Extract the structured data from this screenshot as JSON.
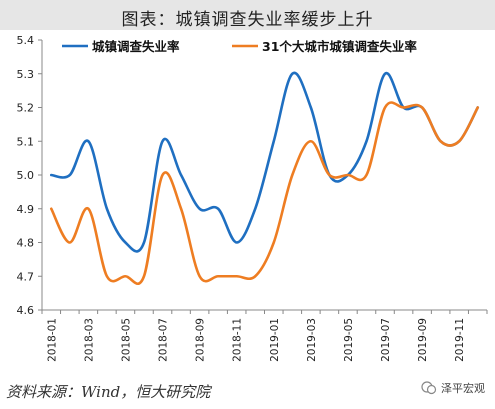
{
  "header": {
    "title": "图表：城镇调查失业率缓步上升"
  },
  "footer": {
    "source": "资料来源：Wind，恒大研究院",
    "watermark": "泽平宏观"
  },
  "colors": {
    "series1": "#1f6fc1",
    "series2": "#ee7d22",
    "axis": "#888888",
    "title_bg": "#e6e6e6"
  },
  "chart_data": {
    "type": "line",
    "x": [
      "2018-01",
      "2018-02",
      "2018-03",
      "2018-04",
      "2018-05",
      "2018-06",
      "2018-07",
      "2018-08",
      "2018-09",
      "2018-10",
      "2018-11",
      "2018-12",
      "2019-01",
      "2019-02",
      "2019-03",
      "2019-04",
      "2019-05",
      "2019-06",
      "2019-07",
      "2019-08",
      "2019-09",
      "2019-10",
      "2019-11",
      "2019-12"
    ],
    "tick_labels": [
      "2018-01",
      "2018-03",
      "2018-05",
      "2018-07",
      "2018-09",
      "2018-11",
      "2019-01",
      "2019-03",
      "2019-05",
      "2019-07",
      "2019-09",
      "2019-11"
    ],
    "ylim": [
      4.6,
      5.4
    ],
    "yticks": [
      "4.6",
      "4.7",
      "4.8",
      "4.9",
      "5.0",
      "5.1",
      "5.2",
      "5.3",
      "5.4"
    ],
    "series": [
      {
        "name": "城镇调查失业率",
        "color": "#1f6fc1",
        "values": [
          5.0,
          5.0,
          5.1,
          4.9,
          4.8,
          4.8,
          5.1,
          5.0,
          4.9,
          4.9,
          4.8,
          4.9,
          5.1,
          5.3,
          5.2,
          5.0,
          5.0,
          5.1,
          5.3,
          5.2,
          5.2,
          5.1,
          5.1,
          5.2
        ]
      },
      {
        "name": "31个大城市城镇调查失业率",
        "color": "#ee7d22",
        "values": [
          4.9,
          4.8,
          4.9,
          4.7,
          4.7,
          4.7,
          5.0,
          4.9,
          4.7,
          4.7,
          4.7,
          4.7,
          4.8,
          5.0,
          5.1,
          5.0,
          5.0,
          5.0,
          5.2,
          5.2,
          5.2,
          5.1,
          5.1,
          5.2
        ]
      }
    ],
    "legend": "top",
    "grid": false
  }
}
